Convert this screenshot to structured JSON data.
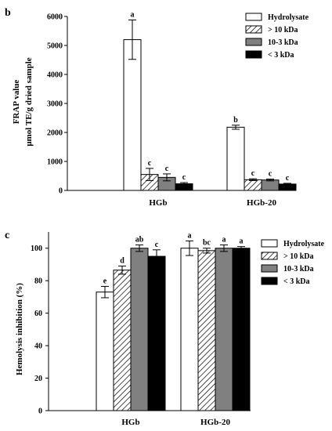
{
  "chart_data": [
    {
      "panel": "b",
      "type": "bar",
      "categories": [
        "HGb",
        "HGb-20"
      ],
      "series": [
        {
          "name": "Hydrolysate",
          "values": [
            5200,
            2180
          ],
          "errors": [
            680,
            70
          ],
          "labels": [
            "a",
            "b"
          ]
        },
        {
          "name": "> 10 kDa",
          "values": [
            550,
            370
          ],
          "errors": [
            210,
            30
          ],
          "labels": [
            "c",
            "c"
          ]
        },
        {
          "name": "10-3 kDa",
          "values": [
            450,
            360
          ],
          "errors": [
            120,
            30
          ],
          "labels": [
            "c",
            "c"
          ]
        },
        {
          "name": "< 3 kDa",
          "values": [
            230,
            220
          ],
          "errors": [
            40,
            25
          ],
          "labels": [
            "c",
            "c"
          ]
        }
      ],
      "ylabel_line1": "FRAP value",
      "ylabel_line2": "μmol TE/g dried sample",
      "ylim": [
        0,
        6000
      ],
      "yticks": [
        0,
        1000,
        2000,
        3000,
        4000,
        5000,
        6000
      ],
      "legend_position": "top-right"
    },
    {
      "panel": "c",
      "type": "bar",
      "categories": [
        "HGb",
        "HGb-20"
      ],
      "series": [
        {
          "name": "Hydrolysate",
          "values": [
            73,
            100
          ],
          "errors": [
            3.5,
            4.5
          ],
          "labels": [
            "e",
            "a"
          ]
        },
        {
          "name": "> 10 kDa",
          "values": [
            86.5,
            98.5
          ],
          "errors": [
            2.5,
            1.5
          ],
          "labels": [
            "d",
            "bc"
          ]
        },
        {
          "name": "10-3 kDa",
          "values": [
            100,
            100
          ],
          "errors": [
            2,
            2
          ],
          "labels": [
            "ab",
            "a"
          ]
        },
        {
          "name": "< 3 kDa",
          "values": [
            95,
            100
          ],
          "errors": [
            4,
            1
          ],
          "labels": [
            "c",
            "a"
          ]
        }
      ],
      "ylabel": "Hemolysis inhibition (%)",
      "ylim": [
        0,
        110
      ],
      "yticks": [
        0,
        20,
        40,
        60,
        80,
        100
      ],
      "legend_position": "top-right"
    }
  ],
  "series_styles": [
    {
      "fill": "#ffffff",
      "pattern": "none"
    },
    {
      "fill": "#ffffff",
      "pattern": "diagonal-hatch"
    },
    {
      "fill": "#808080",
      "pattern": "none"
    },
    {
      "fill": "#000000",
      "pattern": "none"
    }
  ]
}
